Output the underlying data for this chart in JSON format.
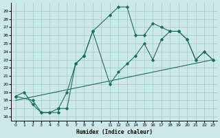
{
  "xlabel": "Humidex (Indice chaleur)",
  "bg_color": "#cce8e8",
  "grid_color": "#aacccc",
  "line_color": "#1a6e60",
  "xlim": [
    -0.5,
    23.5
  ],
  "ylim": [
    15.5,
    30.0
  ],
  "xtick_labels": [
    "0",
    "1",
    "2",
    "3",
    "4",
    "5",
    "6",
    "7",
    "8",
    "9",
    "",
    "11",
    "12",
    "13",
    "14",
    "15",
    "16",
    "17",
    "18",
    "19",
    "20",
    "21",
    "22",
    "23"
  ],
  "xtick_pos": [
    0,
    1,
    2,
    3,
    4,
    5,
    6,
    7,
    8,
    9,
    10,
    11,
    12,
    13,
    14,
    15,
    16,
    17,
    18,
    19,
    20,
    21,
    22,
    23
  ],
  "yticks": [
    16,
    17,
    18,
    19,
    20,
    21,
    22,
    23,
    24,
    25,
    26,
    27,
    28,
    29
  ],
  "line1_x": [
    0,
    1,
    2,
    3,
    4,
    5,
    5,
    6,
    7,
    8,
    9,
    11,
    12,
    13,
    14,
    15,
    16,
    17,
    18,
    19,
    20,
    21,
    22,
    23
  ],
  "line1_y": [
    18.5,
    19,
    17.5,
    16.5,
    16.5,
    16.5,
    17,
    17,
    22.5,
    23.5,
    26.5,
    28.5,
    29.5,
    29.5,
    26,
    26,
    27.5,
    27,
    26.5,
    26.5,
    25.5,
    23,
    24,
    23
  ],
  "line2_x": [
    0,
    2,
    3,
    4,
    5,
    6,
    7,
    8,
    9,
    11,
    12,
    13,
    14,
    15,
    16,
    17,
    18,
    19,
    20,
    21,
    22,
    23
  ],
  "line2_y": [
    18.5,
    18,
    16.5,
    16.5,
    17,
    19,
    22.5,
    23.5,
    26.5,
    20,
    21.5,
    22.5,
    23.5,
    25,
    23,
    25.5,
    26.5,
    26.5,
    25.5,
    23,
    24,
    23
  ],
  "line3_x": [
    0,
    23
  ],
  "line3_y": [
    18.0,
    23.0
  ]
}
